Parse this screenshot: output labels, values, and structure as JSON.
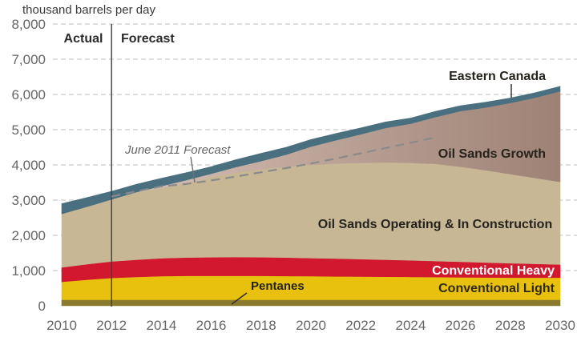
{
  "title": "thousand barrels per day",
  "units": "thousand barrels per day",
  "phase_labels": {
    "actual": "Actual",
    "forecast": "Forecast"
  },
  "annotations": {
    "june_2011_forecast": "June 2011 Forecast",
    "eastern_canada": "Eastern Canada",
    "oil_sands_growth": "Oil Sands Growth",
    "oil_sands_operating": "Oil Sands Operating & In Construction",
    "conventional_heavy": "Conventional Heavy",
    "conventional_light": "Conventional Light",
    "pentanes": "Pentanes"
  },
  "colors": {
    "eastern_canada": "#4a7080",
    "oil_sands_growth_gradient": [
      "#d6c0b6",
      "#9d8174"
    ],
    "oil_sands_operating": "#c7b795",
    "conventional_heavy": "#d2182f",
    "conventional_light": "#e8c00e",
    "pentanes": "#897a2d",
    "gridline": "#cacaca",
    "june_2011_line": "#8a8a8a"
  },
  "chart_data": {
    "type": "area",
    "stacked": true,
    "title": "thousand barrels per day",
    "xlabel": "",
    "ylabel": "thousand barrels per day",
    "ylim": [
      0,
      8000
    ],
    "grid": "horizontal-dashed",
    "divider_year": 2012,
    "x": [
      2010,
      2011,
      2012,
      2013,
      2014,
      2015,
      2016,
      2017,
      2018,
      2019,
      2020,
      2021,
      2022,
      2023,
      2024,
      2025,
      2026,
      2027,
      2028,
      2029,
      2030
    ],
    "x_ticks": [
      "2010",
      "2012",
      "2014",
      "2016",
      "2018",
      "2020",
      "2022",
      "2024",
      "2026",
      "2028",
      "2030"
    ],
    "y_ticks": [
      {
        "value": 0,
        "label": "0"
      },
      {
        "value": 1000,
        "label": "1,000"
      },
      {
        "value": 2000,
        "label": "2,000"
      },
      {
        "value": 3000,
        "label": "3,000"
      },
      {
        "value": 4000,
        "label": "4,000"
      },
      {
        "value": 5000,
        "label": "5,000"
      },
      {
        "value": 6000,
        "label": "6,000"
      },
      {
        "value": 7000,
        "label": "7,000"
      },
      {
        "value": 8000,
        "label": "8,000"
      }
    ],
    "series": [
      {
        "name": "Pentanes",
        "color": "#897a2d",
        "values": [
          170,
          170,
          170,
          170,
          170,
          170,
          170,
          170,
          170,
          170,
          170,
          170,
          170,
          170,
          170,
          170,
          170,
          170,
          170,
          170,
          170
        ]
      },
      {
        "name": "Conventional Light",
        "color": "#e8c00e",
        "values": [
          510,
          570,
          620,
          650,
          670,
          680,
          680,
          680,
          680,
          675,
          670,
          665,
          660,
          655,
          650,
          645,
          640,
          635,
          630,
          630,
          630
        ]
      },
      {
        "name": "Conventional Heavy",
        "color": "#d2182f",
        "values": [
          410,
          440,
          470,
          490,
          510,
          520,
          530,
          535,
          530,
          525,
          515,
          505,
          495,
          485,
          470,
          455,
          440,
          425,
          410,
          390,
          370
        ]
      },
      {
        "name": "Oil Sands Operating & In Construction",
        "color": "#c7b795",
        "values": [
          1520,
          1630,
          1760,
          1910,
          2000,
          2110,
          2270,
          2395,
          2500,
          2580,
          2645,
          2700,
          2735,
          2760,
          2770,
          2760,
          2700,
          2620,
          2530,
          2440,
          2350
        ]
      },
      {
        "name": "Oil Sands Growth",
        "gradient": true,
        "values": [
          0,
          0,
          0,
          10,
          50,
          90,
          100,
          160,
          230,
          340,
          520,
          660,
          810,
          980,
          1110,
          1330,
          1580,
          1780,
          2020,
          2280,
          2570
        ]
      },
      {
        "name": "Eastern Canada",
        "color": "#4a7080",
        "values": [
          290,
          260,
          230,
          220,
          220,
          210,
          200,
          210,
          220,
          210,
          200,
          190,
          180,
          170,
          160,
          160,
          150,
          150,
          140,
          140,
          140
        ]
      }
    ],
    "totals": [
      2900,
      3070,
      3250,
      3450,
      3620,
      3780,
      3950,
      4150,
      4330,
      4500,
      4720,
      4890,
      5050,
      5220,
      5330,
      5520,
      5680,
      5780,
      5900,
      6050,
      6230
    ],
    "overlay_line": {
      "name": "June 2011 Forecast",
      "style": "dashed",
      "x": [
        2012,
        2013,
        2014,
        2015,
        2016,
        2017,
        2018,
        2019,
        2020,
        2021,
        2022,
        2023,
        2024,
        2025
      ],
      "values": [
        3100,
        3250,
        3390,
        3460,
        3560,
        3670,
        3790,
        3910,
        4040,
        4180,
        4330,
        4480,
        4630,
        4780
      ]
    }
  }
}
